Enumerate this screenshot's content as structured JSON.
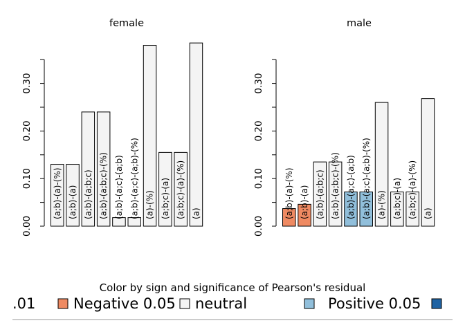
{
  "chart_data": [
    {
      "type": "bar",
      "title": "female",
      "categories": [
        "(a;b)-(a)-(%)",
        "(a;b)-(a)",
        "(a;b)-(a;b;c)",
        "(a;b)-(a;b;c)-(%)",
        "(a;b)-(a;c)-(a;b)",
        "(a;b)-(a;c)-(a;b)-(%)",
        "(a)-(%)",
        "(a;b;c)-(a)",
        "(a;b;c)-(a)-(%)",
        "(a)"
      ],
      "values": [
        0.13,
        0.13,
        0.24,
        0.24,
        0.018,
        0.018,
        0.38,
        0.155,
        0.155,
        0.385
      ],
      "status": [
        "neutral",
        "neutral",
        "neutral",
        "neutral",
        "neutral",
        "neutral",
        "neutral",
        "neutral",
        "neutral",
        "neutral"
      ],
      "yticks": [
        "0.00",
        "0.10",
        "0.20",
        "0.30"
      ],
      "ylim": [
        0,
        0.36
      ]
    },
    {
      "type": "bar",
      "title": "male",
      "categories": [
        "(a;b)-(a)-(%)",
        "(a;b)-(a)",
        "(a;b)-(a;b;c)",
        "(a;b)-(a;b;c)-(%)",
        "(a;b)-(a;c)-(a;b)",
        "(a;b)-(a;c)-(a;b)-(%)",
        "(a)-(%)",
        "(a;b;c)-(a)",
        "(a;b;c)-(a)-(%)",
        "(a)"
      ],
      "values": [
        0.037,
        0.046,
        0.135,
        0.135,
        0.072,
        0.072,
        0.26,
        0.072,
        0.072,
        0.268
      ],
      "status": [
        "neg05",
        "neg05",
        "neutral",
        "neutral",
        "pos05",
        "pos05",
        "neutral",
        "neutral",
        "neutral",
        "neutral"
      ],
      "yticks": [
        "0.00",
        "0.10",
        "0.20",
        "0.30"
      ],
      "ylim": [
        0,
        0.36
      ]
    }
  ],
  "legend": {
    "title": "Color by sign and significance of Pearson's residual",
    "items": [
      {
        "label": ".01",
        "color": ""
      },
      {
        "label": "Negative 0.05",
        "color": "#ef8a62"
      },
      {
        "label": "neutral",
        "color": "#f4f4f4"
      },
      {
        "label": "Positive 0.05",
        "color": "#91bfdb"
      },
      {
        "label": "",
        "color": "#1f63a3"
      }
    ]
  },
  "colors": {
    "neutral": "#f4f4f4",
    "neg05": "#ef8a62",
    "pos05": "#91bfdb",
    "pos01": "#1f63a3"
  }
}
